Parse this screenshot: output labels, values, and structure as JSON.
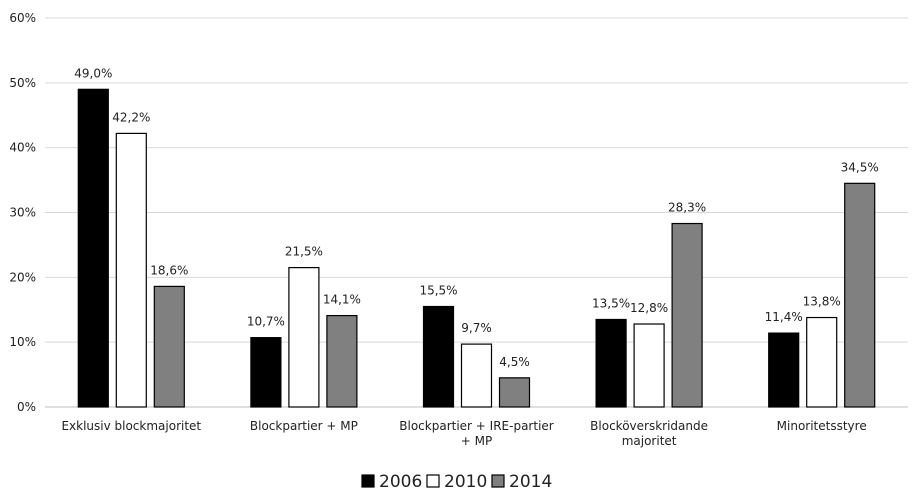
{
  "chart_data": {
    "type": "bar",
    "categories": [
      [
        "Exklusiv blockmajoritet"
      ],
      [
        "Blockpartier + MP"
      ],
      [
        "Blockpartier + IRE-partier",
        "+ MP"
      ],
      [
        "Blocköverskridande",
        "majoritet"
      ],
      [
        "Minoritetsstyre"
      ]
    ],
    "series": [
      {
        "name": "2006",
        "values": [
          49.0,
          10.7,
          15.5,
          13.5,
          11.4
        ],
        "labels": [
          "49,0%",
          "10,7%",
          "15,5%",
          "13,5%",
          "11,4%"
        ],
        "fill": "#000000"
      },
      {
        "name": "2010",
        "values": [
          42.2,
          21.5,
          9.7,
          12.8,
          13.8
        ],
        "labels": [
          "42,2%",
          "21,5%",
          "9,7%",
          "12,8%",
          "13,8%"
        ],
        "fill": "#ffffff"
      },
      {
        "name": "2014",
        "values": [
          18.6,
          14.1,
          4.5,
          28.3,
          34.5
        ],
        "labels": [
          "18,6%",
          "14,1%",
          "4,5%",
          "28,3%",
          "34,5%"
        ],
        "fill": "#808080"
      }
    ],
    "ylim": [
      0,
      60
    ],
    "yticks": [
      "0%",
      "10%",
      "20%",
      "30%",
      "40%",
      "50%",
      "60%"
    ],
    "grid": true,
    "legend_position": "bottom"
  }
}
